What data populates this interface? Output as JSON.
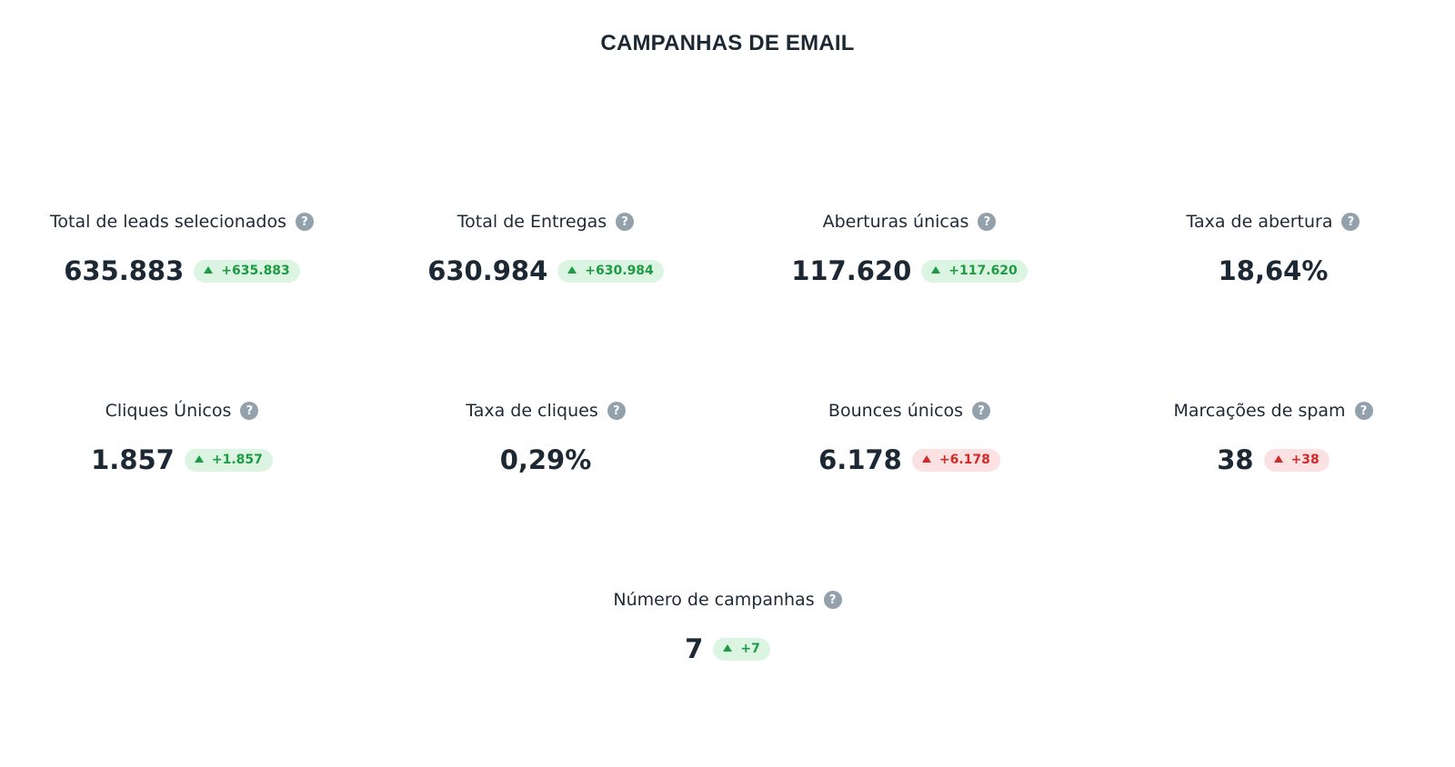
{
  "title": "CAMPANHAS DE EMAIL",
  "help_glyph": "?",
  "metrics": [
    {
      "label": "Total de leads selecionados",
      "value": "635.883",
      "delta": "+635.883",
      "trend": "up",
      "sentiment": "good"
    },
    {
      "label": "Total de Entregas",
      "value": "630.984",
      "delta": "+630.984",
      "trend": "up",
      "sentiment": "good"
    },
    {
      "label": "Aberturas únicas",
      "value": "117.620",
      "delta": "+117.620",
      "trend": "up",
      "sentiment": "good"
    },
    {
      "label": "Taxa de abertura",
      "value": "18,64%",
      "delta": null
    },
    {
      "label": "Cliques Únicos",
      "value": "1.857",
      "delta": "+1.857",
      "trend": "up",
      "sentiment": "good"
    },
    {
      "label": "Taxa de cliques",
      "value": "0,29%",
      "delta": null
    },
    {
      "label": "Bounces únicos",
      "value": "6.178",
      "delta": "+6.178",
      "trend": "up",
      "sentiment": "bad"
    },
    {
      "label": "Marcações de spam",
      "value": "38",
      "delta": "+38",
      "trend": "up",
      "sentiment": "bad"
    },
    {
      "label": "Número de campanhas",
      "value": "7",
      "delta": "+7",
      "trend": "up",
      "sentiment": "good"
    }
  ],
  "colors": {
    "text": "#1c2833",
    "help_icon": "#93a1ad",
    "positive_bg": "#dcf5e2",
    "positive_fg": "#1e9b43",
    "negative_bg": "#fbe1e1",
    "negative_fg": "#d12a2a"
  },
  "icons": {
    "help": "question-circle-icon",
    "trend_up": "triangle-up-icon"
  }
}
